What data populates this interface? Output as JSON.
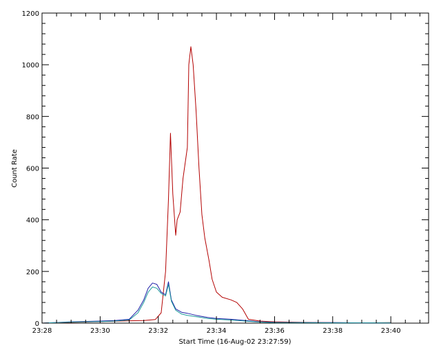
{
  "chart_data": {
    "type": "line",
    "xlabel": "Start Time (16-Aug-02 23:27:59)",
    "ylabel": "Count Rate",
    "x_tick_labels": [
      "23:28",
      "23:30",
      "23:32",
      "23:34",
      "23:36",
      "23:38",
      "23:40"
    ],
    "x_tick_minutes": [
      0,
      2,
      4,
      6,
      8,
      10,
      12
    ],
    "xlim_minutes": [
      0,
      13.3
    ],
    "y_ticks": [
      0,
      200,
      400,
      600,
      800,
      1000,
      1200
    ],
    "ylim": [
      0,
      1200
    ],
    "grid": false,
    "legend": "none",
    "x_units": "minutes after 23:28",
    "series": [
      {
        "color": "#b30000",
        "points": [
          [
            0,
            0
          ],
          [
            1,
            3
          ],
          [
            2,
            6
          ],
          [
            3,
            9
          ],
          [
            3.5,
            10
          ],
          [
            3.9,
            14
          ],
          [
            4.1,
            40
          ],
          [
            4.25,
            200
          ],
          [
            4.35,
            480
          ],
          [
            4.42,
            735
          ],
          [
            4.5,
            500
          ],
          [
            4.6,
            340
          ],
          [
            4.65,
            400
          ],
          [
            4.75,
            430
          ],
          [
            4.85,
            560
          ],
          [
            4.95,
            640
          ],
          [
            5.0,
            680
          ],
          [
            5.05,
            1000
          ],
          [
            5.12,
            1070
          ],
          [
            5.2,
            1000
          ],
          [
            5.3,
            820
          ],
          [
            5.4,
            600
          ],
          [
            5.5,
            420
          ],
          [
            5.6,
            330
          ],
          [
            5.75,
            240
          ],
          [
            5.85,
            170
          ],
          [
            6.0,
            120
          ],
          [
            6.2,
            100
          ],
          [
            6.5,
            90
          ],
          [
            6.7,
            80
          ],
          [
            6.9,
            55
          ],
          [
            7.1,
            15
          ],
          [
            7.5,
            8
          ],
          [
            8,
            5
          ],
          [
            9,
            3
          ],
          [
            10,
            2
          ],
          [
            11,
            1
          ],
          [
            12,
            2
          ]
        ]
      },
      {
        "color": "#1f1fa8",
        "points": [
          [
            0,
            0
          ],
          [
            1,
            5
          ],
          [
            2,
            8
          ],
          [
            2.5,
            10
          ],
          [
            3,
            15
          ],
          [
            3.3,
            50
          ],
          [
            3.5,
            90
          ],
          [
            3.65,
            135
          ],
          [
            3.8,
            155
          ],
          [
            3.95,
            150
          ],
          [
            4.1,
            120
          ],
          [
            4.25,
            110
          ],
          [
            4.35,
            160
          ],
          [
            4.45,
            90
          ],
          [
            4.6,
            55
          ],
          [
            4.8,
            42
          ],
          [
            5.0,
            38
          ],
          [
            5.3,
            30
          ],
          [
            5.7,
            22
          ],
          [
            6,
            18
          ],
          [
            6.5,
            15
          ],
          [
            7,
            10
          ],
          [
            7.5,
            5
          ],
          [
            8,
            3
          ],
          [
            9,
            2
          ],
          [
            10,
            2
          ],
          [
            11,
            1
          ],
          [
            12,
            1
          ]
        ]
      },
      {
        "color": "#1a9a9a",
        "points": [
          [
            0,
            0
          ],
          [
            1,
            4
          ],
          [
            2,
            6
          ],
          [
            2.5,
            8
          ],
          [
            3,
            12
          ],
          [
            3.3,
            40
          ],
          [
            3.5,
            80
          ],
          [
            3.65,
            120
          ],
          [
            3.8,
            140
          ],
          [
            3.95,
            135
          ],
          [
            4.1,
            115
          ],
          [
            4.25,
            105
          ],
          [
            4.35,
            150
          ],
          [
            4.45,
            85
          ],
          [
            4.6,
            50
          ],
          [
            4.8,
            35
          ],
          [
            5.0,
            30
          ],
          [
            5.3,
            25
          ],
          [
            5.7,
            18
          ],
          [
            6,
            15
          ],
          [
            6.5,
            12
          ],
          [
            7,
            8
          ],
          [
            7.5,
            4
          ],
          [
            8,
            2
          ],
          [
            9,
            2
          ],
          [
            10,
            1
          ],
          [
            11,
            1
          ],
          [
            12,
            1
          ]
        ]
      }
    ]
  }
}
